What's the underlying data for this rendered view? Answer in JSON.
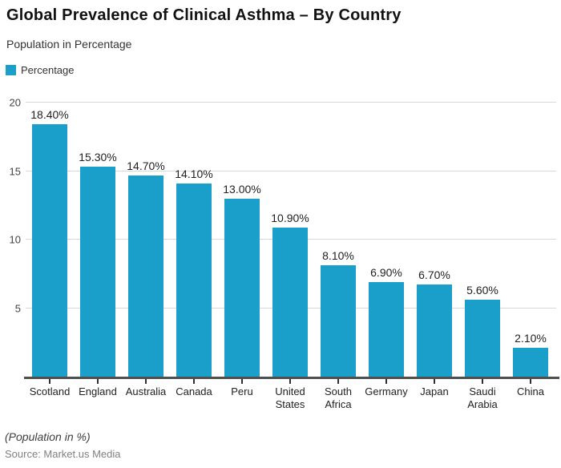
{
  "header": {
    "title": "Global Prevalence of Clinical Asthma – By Country",
    "subtitle": "Population in Percentage"
  },
  "legend": {
    "label": "Percentage",
    "color": "#1A9FCB"
  },
  "chart_data": {
    "type": "bar",
    "title": "Global Prevalence of Clinical Asthma – By Country",
    "subtitle": "Population in Percentage",
    "categories": [
      "Scotland",
      "England",
      "Australia",
      "Canada",
      "Peru",
      "United States",
      "South Africa",
      "Germany",
      "Japan",
      "Saudi Arabia",
      "China"
    ],
    "series": [
      {
        "name": "Percentage",
        "values": [
          18.4,
          15.3,
          14.7,
          14.1,
          13.0,
          10.9,
          8.1,
          6.9,
          6.7,
          5.6,
          2.1
        ],
        "labels": [
          "18.40%",
          "15.30%",
          "14.70%",
          "14.10%",
          "13.00%",
          "10.90%",
          "8.10%",
          "6.90%",
          "6.70%",
          "5.60%",
          "2.10%"
        ],
        "color": "#1A9FCB"
      }
    ],
    "xlabel": "",
    "ylabel": "",
    "ylim": [
      0,
      20
    ],
    "yticks": [
      5,
      10,
      15,
      20
    ],
    "grid": true,
    "legend_position": "top-left"
  },
  "footer": {
    "note": "(Population in %)",
    "source": "Source: Market.us Media"
  },
  "colors": {
    "bar": "#1A9FCB",
    "gridline": "#d8d8d8",
    "axis_line": "#4f4f4f",
    "text": "#212121",
    "muted": "#808080"
  }
}
